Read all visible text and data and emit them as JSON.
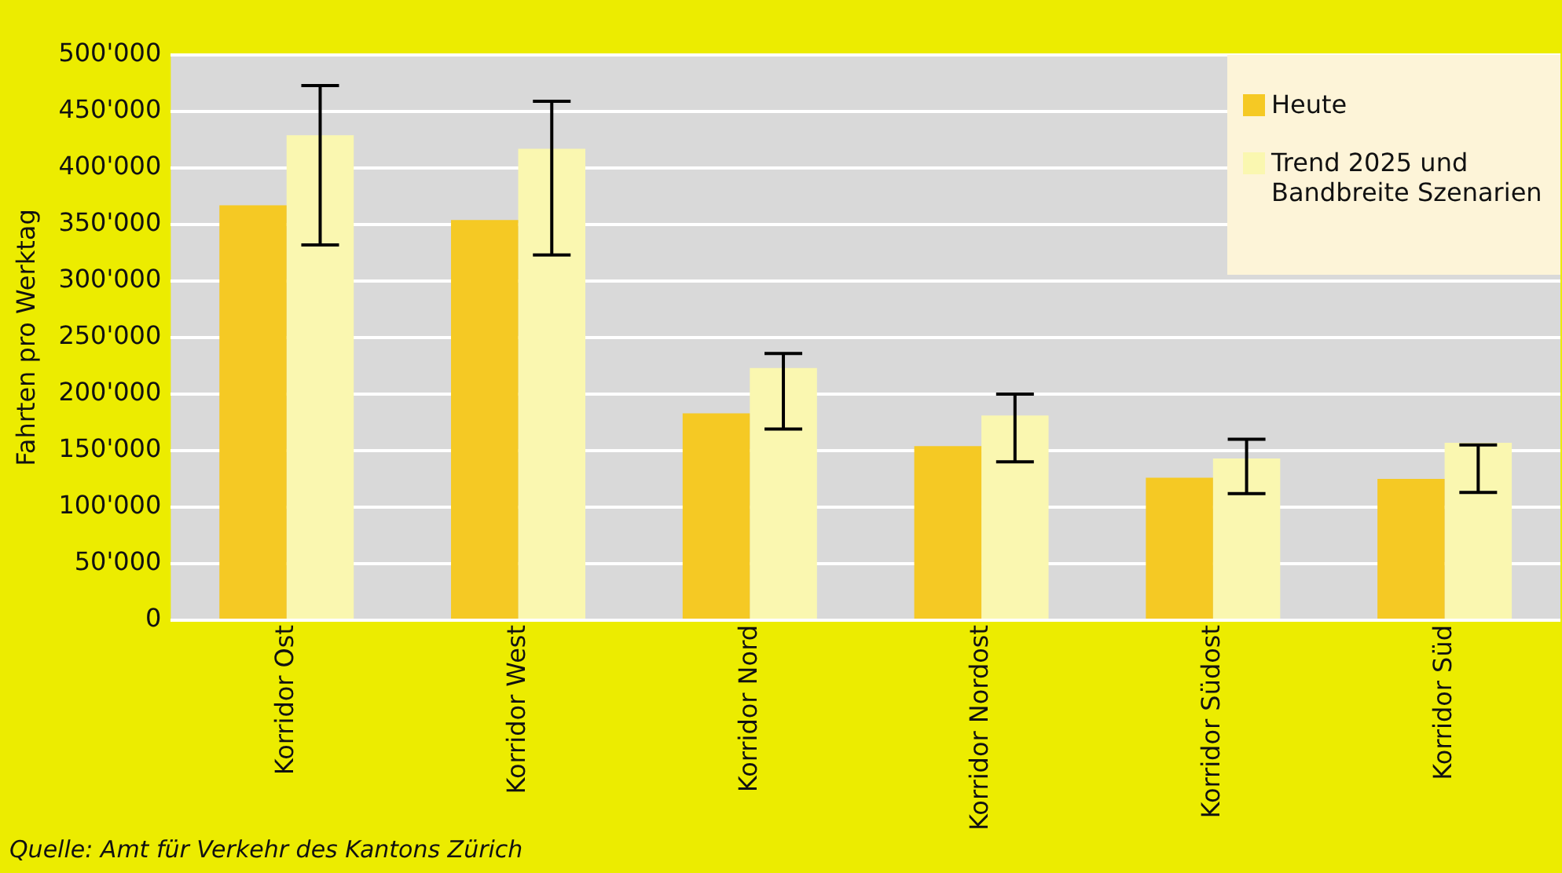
{
  "chart_data": {
    "type": "bar",
    "ylabel": "Fahrten pro Werktag",
    "categories": [
      "Korridor Ost",
      "Korridor West",
      "Korridor Nord",
      "Korridor Nordost",
      "Korridor Südost",
      "Korridor Süd"
    ],
    "series": [
      {
        "name": "Heute",
        "color": "#f5c924",
        "values": [
          367000,
          354000,
          183000,
          154000,
          126000,
          125000
        ]
      },
      {
        "name": "Trend 2025 und Bandbreite Szenarien",
        "color": "#faf7b0",
        "values": [
          429000,
          417000,
          223000,
          181000,
          143000,
          157000
        ],
        "errors": [
          [
            332000,
            473000
          ],
          [
            323000,
            459000
          ],
          [
            169000,
            236000
          ],
          [
            140000,
            200000
          ],
          [
            112000,
            160000
          ],
          [
            113000,
            155000
          ]
        ]
      }
    ],
    "ylim": [
      0,
      500000
    ],
    "yticks": [
      {
        "value": 0,
        "label": "0"
      },
      {
        "value": 50000,
        "label": "50'000"
      },
      {
        "value": 100000,
        "label": "100'000"
      },
      {
        "value": 150000,
        "label": "150'000"
      },
      {
        "value": 200000,
        "label": "200'000"
      },
      {
        "value": 250000,
        "label": "250'000"
      },
      {
        "value": 300000,
        "label": "300'000"
      },
      {
        "value": 350000,
        "label": "350'000"
      },
      {
        "value": 400000,
        "label": "400'000"
      },
      {
        "value": 450000,
        "label": "450'000"
      },
      {
        "value": 500000,
        "label": "500'000"
      }
    ],
    "grid": "y",
    "legend": "top right",
    "annotations": [
      "Quelle: Amt für Verkehr des Kantons Zürich"
    ]
  }
}
